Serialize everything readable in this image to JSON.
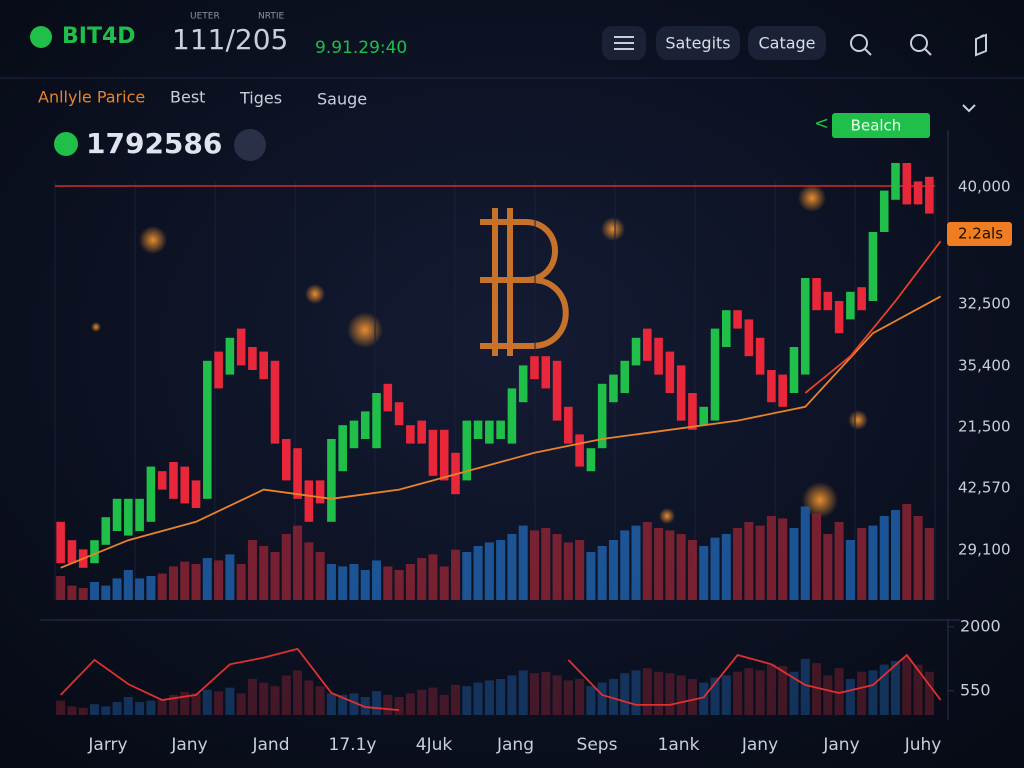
{
  "header": {
    "logo": "BIT4D",
    "label_a": "UETER",
    "label_b": "NRTIE",
    "pair": "111/205",
    "time": "9.91.29:40",
    "buttons": [
      "Sategits",
      "Catage"
    ]
  },
  "tabs": [
    "Anllyle Parice",
    "Best",
    "Tiges",
    "Sauge"
  ],
  "price": "1792586",
  "action": "Bealch",
  "back": "<",
  "chart_data": {
    "type": "candlestick",
    "up_color": "#1fbf4a",
    "down_color": "#e8283a",
    "ylim": [
      0,
      100
    ],
    "open": [
      17,
      13,
      11,
      8,
      12,
      15,
      14,
      15,
      17,
      28,
      30,
      29,
      26,
      22,
      54,
      49,
      59,
      55,
      54,
      52,
      35,
      33,
      26,
      26,
      17,
      28,
      33,
      35,
      33,
      47,
      43,
      38,
      39,
      37,
      37,
      32,
      26,
      35,
      34,
      35,
      34,
      43,
      53,
      53,
      52,
      42,
      36,
      28,
      33,
      43,
      45,
      51,
      59,
      57,
      54,
      51,
      45,
      38,
      39,
      55,
      63,
      61,
      57,
      50,
      49,
      45,
      49,
      70,
      67,
      65,
      61,
      68,
      65,
      80,
      87,
      95,
      91,
      92
    ],
    "close": [
      8,
      8,
      7,
      13,
      18,
      22,
      22,
      22,
      29,
      24,
      22,
      21,
      20,
      52,
      46,
      57,
      51,
      50,
      48,
      34,
      26,
      22,
      17,
      21,
      35,
      38,
      39,
      41,
      45,
      41,
      38,
      34,
      34,
      27,
      26,
      23,
      39,
      39,
      39,
      39,
      46,
      51,
      48,
      46,
      39,
      34,
      29,
      33,
      47,
      49,
      52,
      57,
      52,
      49,
      45,
      39,
      37,
      42,
      59,
      63,
      59,
      53,
      49,
      43,
      42,
      55,
      70,
      63,
      63,
      58,
      67,
      63,
      80,
      89,
      95,
      86,
      86,
      84
    ],
    "volume": [
      20,
      12,
      10,
      15,
      12,
      18,
      25,
      18,
      20,
      22,
      28,
      32,
      30,
      35,
      33,
      38,
      30,
      50,
      45,
      40,
      55,
      62,
      48,
      40,
      30,
      28,
      30,
      25,
      33,
      28,
      25,
      30,
      35,
      38,
      28,
      42,
      40,
      45,
      48,
      50,
      55,
      62,
      58,
      60,
      55,
      48,
      50,
      40,
      45,
      50,
      58,
      62,
      65,
      60,
      58,
      55,
      50,
      45,
      52,
      55,
      60,
      65,
      62,
      70,
      68,
      60,
      78,
      72,
      55,
      65,
      50,
      60,
      62,
      70,
      75,
      80,
      70,
      60
    ],
    "volume_lim": [
      0,
      100
    ],
    "volume_up_color": "#1f5fa8",
    "volume_down_color": "#8a2334",
    "ma": {
      "color": "#e8832a",
      "x": [
        0,
        6,
        12,
        18,
        24,
        30,
        36,
        42,
        48,
        54,
        60,
        66,
        72,
        78
      ],
      "values": [
        7,
        13,
        17,
        24,
        22,
        24,
        28,
        32,
        35,
        37,
        39,
        42,
        58,
        66
      ]
    },
    "ma2": {
      "color": "#e8402a",
      "x": [
        66,
        70,
        74,
        78
      ],
      "values": [
        45,
        53,
        65,
        78
      ]
    },
    "resistance": {
      "value": 90,
      "color": "#d62a2a"
    },
    "price_labels": [
      "40,000",
      "32,500",
      "35,400",
      "21,500",
      "42,570",
      "29,100"
    ],
    "price_tag": "2.2als",
    "indicator": {
      "color": "#e03030",
      "ylim": [
        0,
        2200
      ],
      "yticks": [
        2000,
        550
      ],
      "x": [
        0,
        3,
        6,
        9,
        12,
        15,
        18,
        21,
        24,
        27,
        30,
        33,
        36,
        39,
        42,
        45,
        48,
        51,
        54,
        57,
        60,
        63,
        66,
        69,
        72,
        75,
        78
      ],
      "values": [
        455,
        1250,
        700,
        340,
        455,
        1150,
        1300,
        1500,
        500,
        180,
        110,
        null,
        null,
        null,
        null,
        1250,
        455,
        230,
        230,
        400,
        1360,
        1150,
        680,
        500,
        680,
        1360,
        340
      ]
    },
    "x_labels": [
      "Jarry",
      "Jany",
      "Jand",
      "17.1y",
      "4Juk",
      "Jang",
      "Seps",
      "1ank",
      "Jany",
      "Jany",
      "Juhy"
    ]
  }
}
